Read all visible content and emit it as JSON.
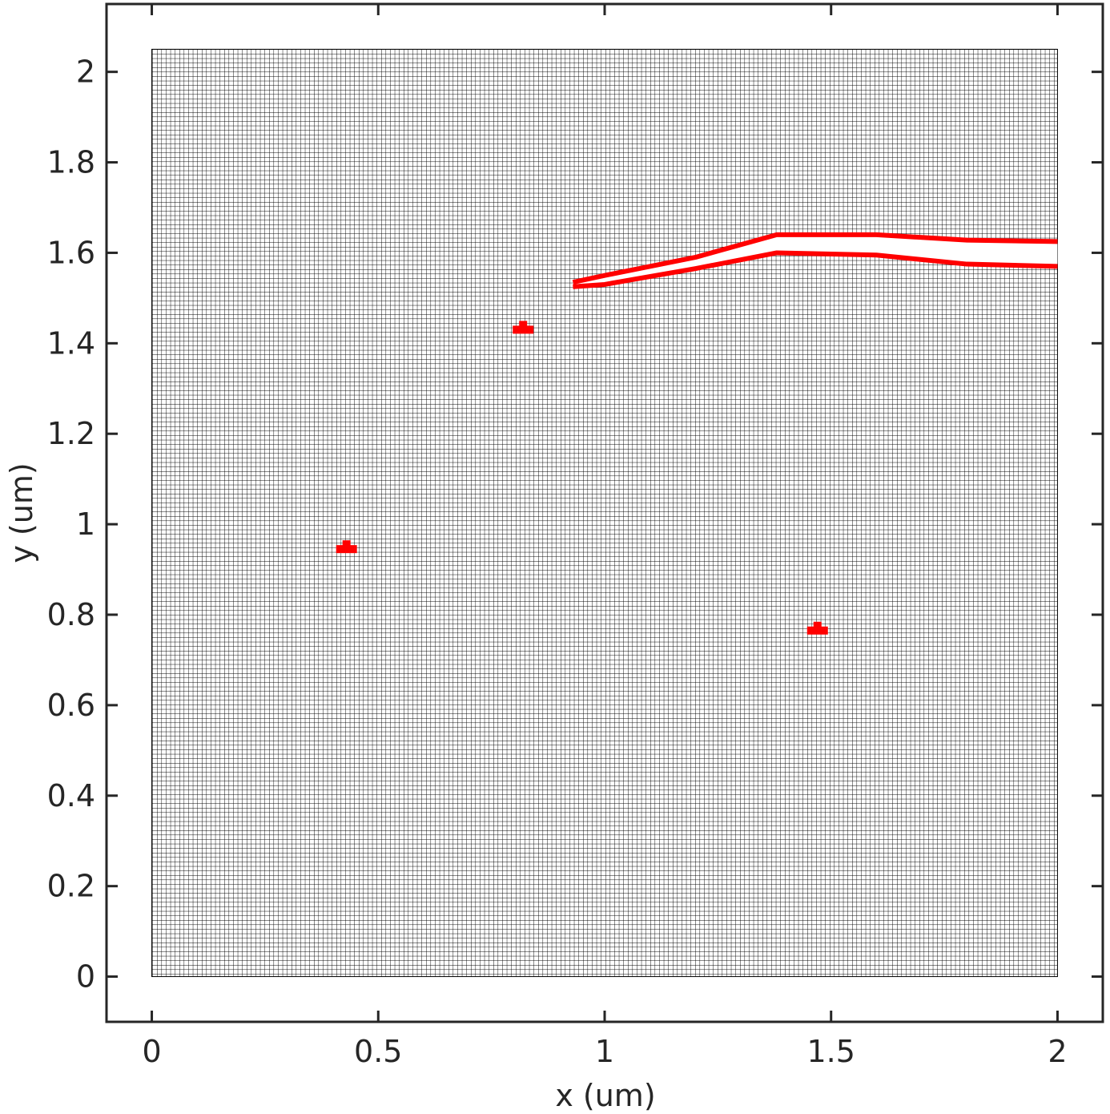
{
  "chart_data": {
    "type": "mesh",
    "title": "",
    "xlabel": "x (um)",
    "ylabel": "y (um)",
    "xlim": [
      -0.1,
      2.1
    ],
    "ylim": [
      -0.1,
      2.15
    ],
    "xticks": [
      0,
      0.5,
      1,
      1.5,
      2
    ],
    "xtick_labels": [
      "0",
      "0.5",
      "1",
      "1.5",
      "2"
    ],
    "yticks": [
      0,
      0.2,
      0.4,
      0.6,
      0.8,
      1,
      1.2,
      1.4,
      1.6,
      1.8,
      2
    ],
    "ytick_labels": [
      "0",
      "0.2",
      "0.4",
      "0.6",
      "0.8",
      "1",
      "1.2",
      "1.4",
      "1.6",
      "1.8",
      "2"
    ],
    "grid": false,
    "mesh": {
      "x_range": [
        0,
        2
      ],
      "y_range": [
        0,
        2.05
      ],
      "approx_cells_x": 200,
      "approx_cells_y": 205,
      "cell_edge_color": "#000000",
      "cell_fill_color": "#ffffff"
    },
    "crack": {
      "color": "#ff0000",
      "upper_edge": [
        [
          0.93,
          1.535
        ],
        [
          1.0,
          1.55
        ],
        [
          1.2,
          1.59
        ],
        [
          1.38,
          1.64
        ],
        [
          1.6,
          1.64
        ],
        [
          1.8,
          1.628
        ],
        [
          2.0,
          1.625
        ]
      ],
      "lower_edge": [
        [
          0.93,
          1.525
        ],
        [
          1.0,
          1.53
        ],
        [
          1.2,
          1.565
        ],
        [
          1.38,
          1.6
        ],
        [
          1.6,
          1.595
        ],
        [
          1.8,
          1.575
        ],
        [
          2.0,
          1.57
        ]
      ]
    },
    "damage_spots": [
      {
        "x": 0.82,
        "y": 1.43,
        "color": "#ff0000"
      },
      {
        "x": 0.43,
        "y": 0.945,
        "color": "#ff0000"
      },
      {
        "x": 1.47,
        "y": 0.765,
        "color": "#ff0000"
      }
    ],
    "colors": {
      "axes": "#262626",
      "mesh": "#000000",
      "damage": "#ff0000",
      "background": "#ffffff"
    }
  }
}
